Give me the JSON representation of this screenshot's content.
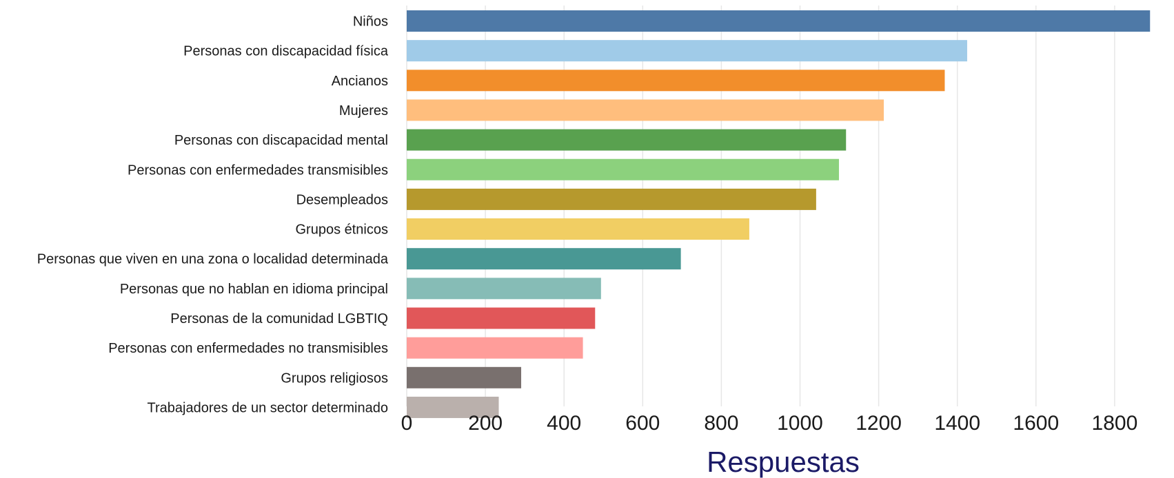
{
  "chart_data": {
    "type": "bar",
    "orientation": "horizontal",
    "categories": [
      "Niños",
      "Personas con discapacidad física",
      "Ancianos",
      "Mujeres",
      "Personas con discapacidad mental",
      "Personas con enfermedades transmisibles",
      "Desempleados",
      "Grupos étnicos",
      "Personas que viven en una zona o localidad determinada",
      "Personas que no hablan en idioma principal",
      "Personas de la comunidad LGBTIQ",
      "Personas con enfermedades no transmisibles",
      "Grupos religiosos",
      "Trabajadores de un sector determinado"
    ],
    "values": [
      1890,
      1425,
      1368,
      1213,
      1117,
      1099,
      1041,
      871,
      697,
      494,
      479,
      448,
      291,
      234
    ],
    "colors": [
      "#4e79a7",
      "#a0cbe8",
      "#f28e2b",
      "#ffbe7d",
      "#59a14f",
      "#8cd17d",
      "#b6992d",
      "#f1ce63",
      "#499894",
      "#86bcb6",
      "#e15759",
      "#ff9d9a",
      "#79706e",
      "#bab0ac"
    ],
    "xlabel": "Respuestas",
    "ylabel": "",
    "xlim": [
      0,
      1900
    ],
    "xticks": [
      "0",
      "200",
      "400",
      "600",
      "800",
      "1000",
      "1200",
      "1400",
      "1600",
      "1800"
    ],
    "grid": "vertical"
  }
}
